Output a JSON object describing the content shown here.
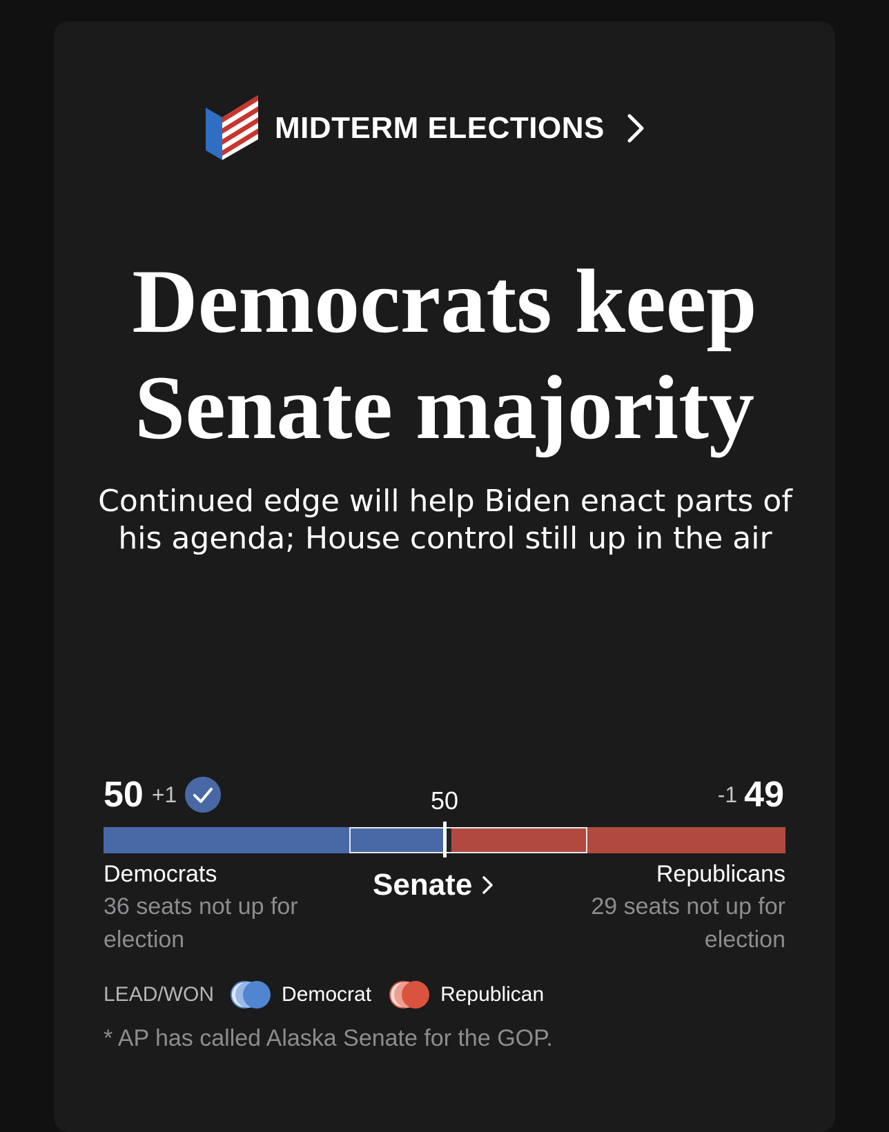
{
  "header": {
    "kicker": "MIDTERM ELECTIONS",
    "kicker_icon": "flag-book-icon",
    "chevron_icon": "chevron-right-icon"
  },
  "headline": {
    "line1": "Democrats keep",
    "line2": "Senate majority"
  },
  "subhead": "Continued edge will help Biden enact parts of his agenda; House control still up in the air",
  "seat_tracker": {
    "total_seats": 100,
    "majority_line": "50",
    "democrats": {
      "seats": "50",
      "change": "+1",
      "called": true,
      "seats_value": 50,
      "not_up_value": 36,
      "name": "Democrats",
      "note": "36 seats not up for election",
      "color": "#4869a6"
    },
    "republicans": {
      "seats": "49",
      "change": "-1",
      "seats_value": 49,
      "not_up_value": 29,
      "name": "Republicans",
      "note": "29 seats not up for election",
      "color": "#b04a41"
    },
    "link_label": "Senate"
  },
  "legend": {
    "title": "LEAD/WON",
    "items": [
      {
        "label": "Democrat",
        "color": "#4f86cf"
      },
      {
        "label": "Republican",
        "color": "#d9533f"
      }
    ]
  },
  "footnote": "* AP has called Alaska Senate for the GOP."
}
